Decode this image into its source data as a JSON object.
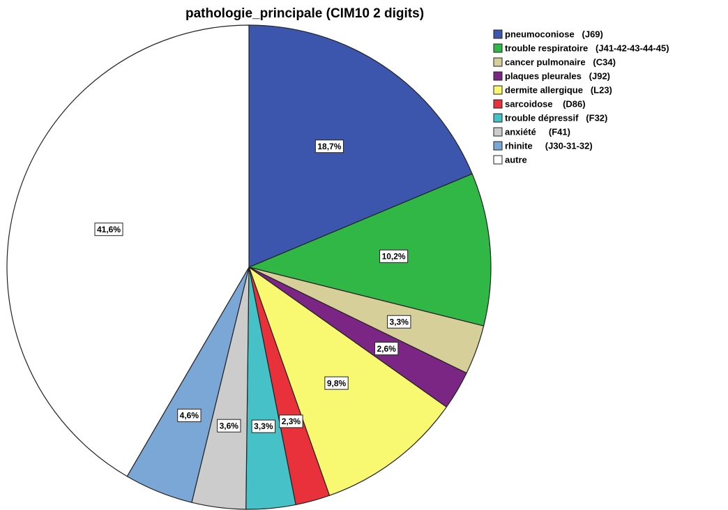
{
  "chart_data": {
    "type": "pie",
    "title": "pathologie_principale (CIM10 2 digits)",
    "categories": [
      "pneumoconiose   (J69)",
      "trouble respiratoire   (J41-42-43-44-45)",
      "cancer pulmonaire   (C34)",
      "plaques pleurales   (J92)",
      "dermite allergique   (L23)",
      "sarcoidose    (D86)",
      "trouble dépressif   (F32)",
      "anxiété     (F41)",
      "rhinite     (J30-31-32)",
      "autre"
    ],
    "values": [
      18.7,
      10.2,
      3.3,
      2.6,
      9.8,
      2.3,
      3.3,
      3.6,
      4.6,
      41.6
    ],
    "value_labels": [
      "18,7%",
      "10,2%",
      "3,3%",
      "2,6%",
      "9,8%",
      "2,3%",
      "3,3%",
      "3,6%",
      "4,6%",
      "41,6%"
    ],
    "colors": [
      "#3c56ad",
      "#30b746",
      "#d6cf9a",
      "#7b2584",
      "#f9f871",
      "#e8313a",
      "#45c1c7",
      "#cccccc",
      "#7ba7d7",
      "#ffffff"
    ],
    "legend": "top-right"
  }
}
